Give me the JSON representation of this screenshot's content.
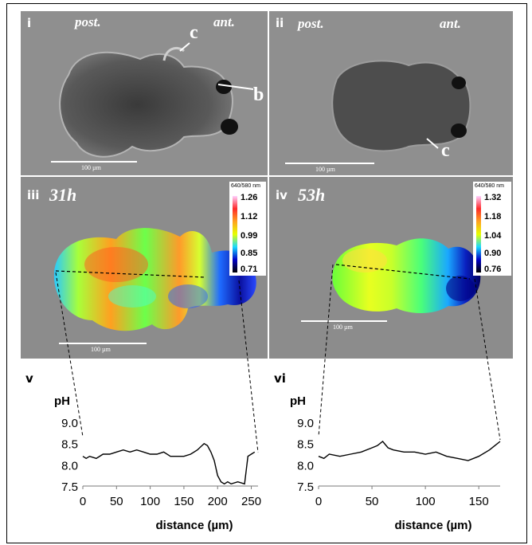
{
  "panels": {
    "i": {
      "label": "i",
      "post": "post.",
      "ant": "ant.",
      "marker_c": "c",
      "marker_b": "b",
      "scalebar": "100 µm"
    },
    "ii": {
      "label": "ii",
      "post": "post.",
      "ant": "ant.",
      "marker_c": "c",
      "scalebar": "100 µm"
    },
    "iii": {
      "label": "iii",
      "time": "31h",
      "scalebar": "100 µm",
      "legend": {
        "title": "640/580 nm",
        "ticks": [
          "1.26",
          "1.12",
          "0.99",
          "0.85",
          "0.71"
        ]
      }
    },
    "iv": {
      "label": "iv",
      "time": "53h",
      "scalebar": "100 µm",
      "legend": {
        "title": "640/580 nm",
        "ticks": [
          "1.32",
          "1.18",
          "1.04",
          "0.90",
          "0.76"
        ]
      }
    },
    "v": {
      "label": "v"
    },
    "vi": {
      "label": "vi"
    }
  },
  "colors": {
    "background_gray": "#8c8c8c",
    "ratio_high": "#ff2020",
    "ratio_mid": "#e6ff00",
    "ratio_low": "#0000c8"
  },
  "chart_data": [
    {
      "type": "line",
      "panel": "v",
      "ylabel": "pH",
      "xlabel": "distance (µm)",
      "ylim": [
        7.5,
        9.0
      ],
      "yticks": [
        "9.0",
        "8.5",
        "8.0",
        "7.5"
      ],
      "xlim": [
        0,
        260
      ],
      "xticks": [
        "0",
        "50",
        "100",
        "150",
        "200",
        "250"
      ],
      "x": [
        0,
        5,
        10,
        20,
        30,
        40,
        50,
        60,
        70,
        80,
        90,
        100,
        110,
        120,
        130,
        140,
        150,
        160,
        170,
        180,
        185,
        190,
        195,
        200,
        205,
        210,
        215,
        220,
        230,
        240,
        245,
        250,
        255
      ],
      "y": [
        8.2,
        8.15,
        8.2,
        8.15,
        8.25,
        8.25,
        8.3,
        8.35,
        8.3,
        8.35,
        8.3,
        8.25,
        8.25,
        8.3,
        8.2,
        8.2,
        8.2,
        8.25,
        8.35,
        8.5,
        8.45,
        8.3,
        8.1,
        7.75,
        7.6,
        7.55,
        7.6,
        7.55,
        7.6,
        7.55,
        8.2,
        8.25,
        8.3
      ]
    },
    {
      "type": "line",
      "panel": "vi",
      "ylabel": "pH",
      "xlabel": "distance (µm)",
      "ylim": [
        7.5,
        9.0
      ],
      "yticks": [
        "9.0",
        "8.5",
        "8.0",
        "7.5"
      ],
      "xlim": [
        0,
        170
      ],
      "xticks": [
        "0",
        "50",
        "100",
        "150"
      ],
      "x": [
        0,
        5,
        10,
        20,
        30,
        40,
        50,
        55,
        60,
        65,
        70,
        80,
        90,
        100,
        110,
        120,
        130,
        140,
        150,
        160,
        165,
        170
      ],
      "y": [
        8.2,
        8.15,
        8.25,
        8.2,
        8.25,
        8.3,
        8.4,
        8.45,
        8.55,
        8.4,
        8.35,
        8.3,
        8.3,
        8.25,
        8.3,
        8.2,
        8.15,
        8.1,
        8.2,
        8.35,
        8.45,
        8.55
      ]
    }
  ]
}
